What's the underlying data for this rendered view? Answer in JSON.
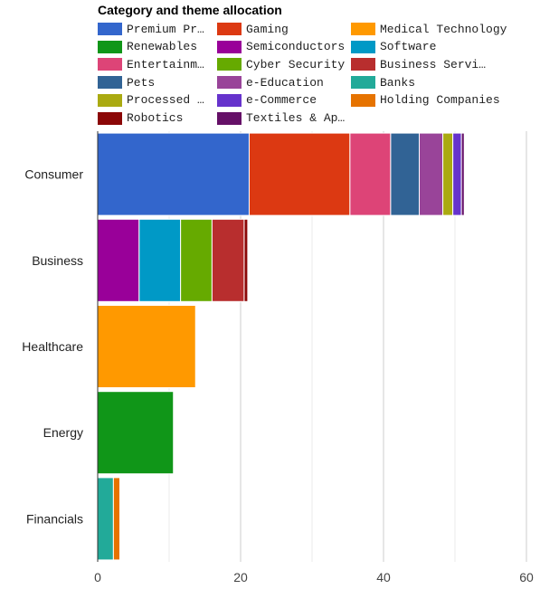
{
  "colors": {
    "Premium Products": "#3366cc",
    "Gaming": "#dc3912",
    "Medical Technology": "#ff9900",
    "Renewables": "#109618",
    "Semiconductors": "#990099",
    "Software": "#0099c6",
    "Entertainment": "#dd4477",
    "Cyber Security": "#66aa00",
    "Business Services": "#b82e2e",
    "Pets": "#316395",
    "e-Education": "#994499",
    "Banks": "#22aa99",
    "Processed Food": "#aaaa11",
    "e-Commerce": "#6633cc",
    "Holding Companies": "#e67300",
    "Robotics": "#8b0707",
    "Textiles & Apparel": "#651067",
    "grid": "#cccccc",
    "axis": "#333333"
  },
  "chart_data": {
    "type": "bar",
    "orientation": "horizontal",
    "stacked": true,
    "title": "Category and theme allocation",
    "categories": [
      "Consumer",
      "Business",
      "Healthcare",
      "Energy",
      "Financials"
    ],
    "legend_labels": [
      "Premium Products",
      "Gaming",
      "Medical Technology",
      "Renewables",
      "Semiconductors",
      "Software",
      "Entertainment",
      "Cyber Security",
      "Business Servi…",
      "Pets",
      "e-Education",
      "Banks",
      "Processed Food",
      "e-Commerce",
      "Holding Companies",
      "Robotics",
      "Textiles & Apparel"
    ],
    "series": [
      {
        "name": "Premium Products",
        "values": [
          21.2,
          0,
          0,
          0,
          0
        ]
      },
      {
        "name": "Gaming",
        "values": [
          14.1,
          0,
          0,
          0,
          0
        ]
      },
      {
        "name": "Medical Technology",
        "values": [
          0,
          0,
          13.7,
          0,
          0
        ]
      },
      {
        "name": "Renewables",
        "values": [
          0,
          0,
          0,
          10.6,
          0
        ]
      },
      {
        "name": "Semiconductors",
        "values": [
          0,
          5.8,
          0,
          0,
          0
        ]
      },
      {
        "name": "Software",
        "values": [
          0,
          5.8,
          0,
          0,
          0
        ]
      },
      {
        "name": "Entertainment",
        "values": [
          5.7,
          0,
          0,
          0,
          0
        ]
      },
      {
        "name": "Cyber Security",
        "values": [
          0,
          4.4,
          0,
          0,
          0
        ]
      },
      {
        "name": "Business Services",
        "values": [
          0,
          4.5,
          0,
          0,
          0
        ]
      },
      {
        "name": "Pets",
        "values": [
          4.0,
          0,
          0,
          0,
          0
        ]
      },
      {
        "name": "e-Education",
        "values": [
          3.3,
          0,
          0,
          0,
          0
        ]
      },
      {
        "name": "Banks",
        "values": [
          0,
          0,
          0,
          0,
          2.2
        ]
      },
      {
        "name": "Processed Food",
        "values": [
          1.4,
          0,
          0,
          0,
          0
        ]
      },
      {
        "name": "e-Commerce",
        "values": [
          1.2,
          0,
          0,
          0,
          0
        ]
      },
      {
        "name": "Holding Companies",
        "values": [
          0,
          0,
          0,
          0,
          0.9
        ]
      },
      {
        "name": "Robotics",
        "values": [
          0,
          0.5,
          0,
          0,
          0
        ]
      },
      {
        "name": "Textiles & Apparel",
        "values": [
          0.4,
          0,
          0,
          0,
          0
        ]
      }
    ],
    "xlim": [
      0,
      60
    ],
    "xticks": [
      0,
      20,
      40,
      60
    ],
    "xtick_labels": [
      "0",
      "20",
      "40",
      "60"
    ],
    "grid": true,
    "legend_position": "top"
  }
}
